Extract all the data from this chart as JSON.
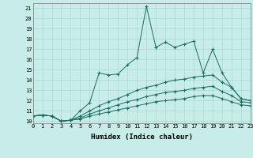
{
  "xlabel": "Humidex (Indice chaleur)",
  "ylabel": "",
  "background_color": "#c8ede8",
  "grid_color": "#aad8d0",
  "line_color": "#1a6b60",
  "xlim": [
    0,
    23
  ],
  "ylim": [
    9.8,
    21.5
  ],
  "xtick_labels": [
    "0",
    "1",
    "2",
    "3",
    "4",
    "5",
    "6",
    "7",
    "8",
    "9",
    "10",
    "11",
    "12",
    "13",
    "14",
    "15",
    "16",
    "17",
    "18",
    "19",
    "20",
    "21",
    "22",
    "23"
  ],
  "ytick_labels": [
    "10",
    "11",
    "12",
    "13",
    "14",
    "15",
    "16",
    "17",
    "18",
    "19",
    "20",
    "21"
  ],
  "series": [
    {
      "x": [
        0,
        1,
        2,
        3,
        4,
        5,
        6,
        7,
        8,
        9,
        10,
        11,
        12,
        13,
        14,
        15,
        16,
        17,
        18,
        19,
        20,
        21,
        22,
        23
      ],
      "y": [
        10.5,
        10.6,
        10.5,
        10.0,
        10.1,
        11.0,
        11.8,
        14.7,
        14.5,
        14.6,
        15.5,
        16.2,
        21.2,
        17.2,
        17.7,
        17.2,
        17.5,
        17.8,
        14.7,
        17.0,
        14.7,
        13.3,
        12.2,
        12.0
      ]
    },
    {
      "x": [
        0,
        1,
        2,
        3,
        4,
        5,
        6,
        7,
        8,
        9,
        10,
        11,
        12,
        13,
        14,
        15,
        16,
        17,
        18,
        19,
        20,
        21,
        22,
        23
      ],
      "y": [
        10.5,
        10.6,
        10.5,
        10.0,
        10.1,
        10.5,
        11.0,
        11.5,
        11.9,
        12.2,
        12.6,
        13.0,
        13.3,
        13.5,
        13.8,
        14.0,
        14.1,
        14.3,
        14.4,
        14.5,
        13.8,
        13.3,
        12.2,
        12.0
      ]
    },
    {
      "x": [
        0,
        1,
        2,
        3,
        4,
        5,
        6,
        7,
        8,
        9,
        10,
        11,
        12,
        13,
        14,
        15,
        16,
        17,
        18,
        19,
        20,
        21,
        22,
        23
      ],
      "y": [
        10.5,
        10.6,
        10.5,
        10.0,
        10.1,
        10.3,
        10.7,
        11.0,
        11.3,
        11.6,
        11.9,
        12.1,
        12.4,
        12.6,
        12.8,
        12.9,
        13.0,
        13.2,
        13.3,
        13.4,
        12.9,
        12.5,
        11.9,
        11.8
      ]
    },
    {
      "x": [
        0,
        1,
        2,
        3,
        4,
        5,
        6,
        7,
        8,
        9,
        10,
        11,
        12,
        13,
        14,
        15,
        16,
        17,
        18,
        19,
        20,
        21,
        22,
        23
      ],
      "y": [
        10.5,
        10.6,
        10.5,
        10.0,
        10.1,
        10.2,
        10.5,
        10.7,
        10.9,
        11.1,
        11.3,
        11.5,
        11.7,
        11.9,
        12.0,
        12.1,
        12.2,
        12.4,
        12.5,
        12.5,
        12.2,
        11.9,
        11.6,
        11.5
      ]
    }
  ]
}
